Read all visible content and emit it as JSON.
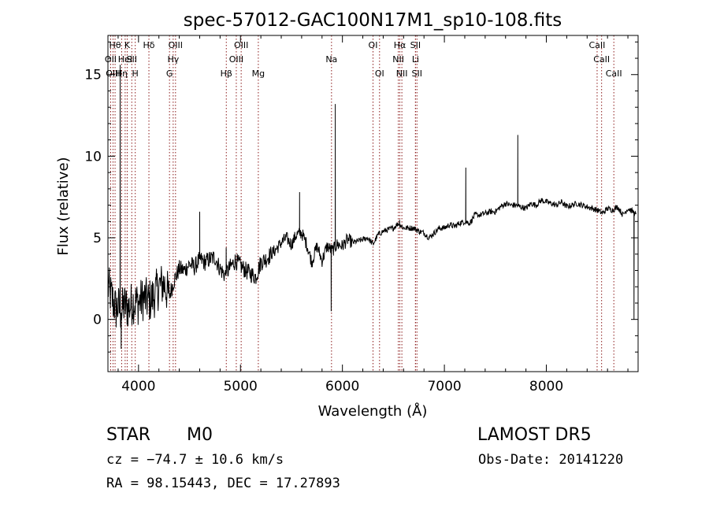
{
  "chart_data": {
    "type": "line",
    "title": "spec-57012-GAC100N17M1_sp10-108.fits",
    "xlabel": "Wavelength (Å)",
    "ylabel": "Flux (relative)",
    "xlim": [
      3700,
      8900
    ],
    "ylim": [
      -3.2,
      17.4
    ],
    "xticks": [
      4000,
      5000,
      6000,
      7000,
      8000
    ],
    "yticks": [
      0,
      5,
      10,
      15
    ],
    "grid": false,
    "series_color": "#000000",
    "line_color": "#8b1a1a",
    "anchors": [
      [
        3700,
        2.0
      ],
      [
        3740,
        1.3
      ],
      [
        3780,
        0.6
      ],
      [
        3800,
        0.8
      ],
      [
        3830,
        0.4
      ],
      [
        3860,
        0.9
      ],
      [
        3900,
        0.7
      ],
      [
        3950,
        1.1
      ],
      [
        4000,
        1.0
      ],
      [
        4050,
        1.3
      ],
      [
        4100,
        1.1
      ],
      [
        4150,
        1.4
      ],
      [
        4200,
        2.0
      ],
      [
        4250,
        2.2
      ],
      [
        4300,
        1.4
      ],
      [
        4350,
        2.4
      ],
      [
        4400,
        3.1
      ],
      [
        4450,
        3.0
      ],
      [
        4500,
        3.4
      ],
      [
        4550,
        3.2
      ],
      [
        4600,
        3.7
      ],
      [
        4650,
        3.5
      ],
      [
        4700,
        3.7
      ],
      [
        4750,
        3.8
      ],
      [
        4800,
        3.1
      ],
      [
        4850,
        2.7
      ],
      [
        4900,
        3.2
      ],
      [
        4950,
        3.6
      ],
      [
        5000,
        3.3
      ],
      [
        5050,
        3.0
      ],
      [
        5100,
        2.8
      ],
      [
        5150,
        2.6
      ],
      [
        5200,
        3.5
      ],
      [
        5250,
        3.7
      ],
      [
        5300,
        4.0
      ],
      [
        5350,
        4.3
      ],
      [
        5400,
        4.7
      ],
      [
        5450,
        5.0
      ],
      [
        5500,
        4.6
      ],
      [
        5550,
        5.2
      ],
      [
        5600,
        5.3
      ],
      [
        5650,
        4.6
      ],
      [
        5700,
        3.5
      ],
      [
        5750,
        4.5
      ],
      [
        5800,
        3.6
      ],
      [
        5850,
        4.5
      ],
      [
        5900,
        4.2
      ],
      [
        5950,
        4.6
      ],
      [
        6000,
        4.5
      ],
      [
        6050,
        4.9
      ],
      [
        6100,
        4.7
      ],
      [
        6150,
        4.8
      ],
      [
        6200,
        4.9
      ],
      [
        6250,
        5.0
      ],
      [
        6300,
        4.6
      ],
      [
        6350,
        5.2
      ],
      [
        6400,
        5.4
      ],
      [
        6450,
        5.5
      ],
      [
        6500,
        5.6
      ],
      [
        6550,
        5.9
      ],
      [
        6600,
        5.6
      ],
      [
        6650,
        5.6
      ],
      [
        6700,
        5.6
      ],
      [
        6750,
        5.4
      ],
      [
        6800,
        5.3
      ],
      [
        6850,
        5.0
      ],
      [
        6900,
        5.3
      ],
      [
        6950,
        5.6
      ],
      [
        7000,
        5.6
      ],
      [
        7050,
        5.8
      ],
      [
        7100,
        5.7
      ],
      [
        7150,
        5.9
      ],
      [
        7200,
        6.0
      ],
      [
        7250,
        5.9
      ],
      [
        7300,
        6.4
      ],
      [
        7350,
        6.4
      ],
      [
        7400,
        6.5
      ],
      [
        7450,
        6.6
      ],
      [
        7500,
        6.6
      ],
      [
        7550,
        6.9
      ],
      [
        7600,
        7.1
      ],
      [
        7650,
        7.0
      ],
      [
        7700,
        7.0
      ],
      [
        7750,
        6.9
      ],
      [
        7800,
        6.8
      ],
      [
        7850,
        7.1
      ],
      [
        7900,
        7.0
      ],
      [
        7950,
        7.3
      ],
      [
        8000,
        7.2
      ],
      [
        8050,
        7.1
      ],
      [
        8100,
        7.0
      ],
      [
        8150,
        7.2
      ],
      [
        8200,
        6.9
      ],
      [
        8250,
        7.0
      ],
      [
        8300,
        7.1
      ],
      [
        8350,
        7.0
      ],
      [
        8400,
        6.9
      ],
      [
        8450,
        6.8
      ],
      [
        8500,
        6.7
      ],
      [
        8550,
        6.5
      ],
      [
        8600,
        6.8
      ],
      [
        8650,
        6.7
      ],
      [
        8700,
        6.9
      ],
      [
        8750,
        6.4
      ],
      [
        8800,
        6.8
      ],
      [
        8850,
        6.6
      ],
      [
        8880,
        6.4
      ]
    ],
    "spikes": [
      [
        3820,
        15.6
      ],
      [
        3830,
        -1.8
      ],
      [
        4600,
        6.6
      ],
      [
        4860,
        4.4
      ],
      [
        5580,
        7.8
      ],
      [
        5890,
        0.5
      ],
      [
        5930,
        13.2
      ],
      [
        6560,
        6.1
      ],
      [
        7210,
        9.3
      ],
      [
        7720,
        11.3
      ],
      [
        8860,
        0.0
      ]
    ],
    "lines": [
      {
        "wl": 3727,
        "label": "OII",
        "row": 2
      },
      {
        "wl": 3750,
        "label": "OIII",
        "row": 3
      },
      {
        "wl": 3770,
        "label": "Hθ",
        "row": 1
      },
      {
        "wl": 3835,
        "label": "Hη",
        "row": 3
      },
      {
        "wl": 3869,
        "label": "HeI",
        "row": 2
      },
      {
        "wl": 3889,
        "label": "K",
        "row": 1
      },
      {
        "wl": 3934,
        "label": "SII",
        "row": 2
      },
      {
        "wl": 3968,
        "label": "H",
        "row": 3
      },
      {
        "wl": 4102,
        "label": "Hδ",
        "row": 1
      },
      {
        "wl": 4304,
        "label": "G",
        "row": 3
      },
      {
        "wl": 4340,
        "label": "Hγ",
        "row": 2
      },
      {
        "wl": 4363,
        "label": "OIII",
        "row": 1
      },
      {
        "wl": 4861,
        "label": "Hβ",
        "row": 3
      },
      {
        "wl": 4959,
        "label": "OIII",
        "row": 2
      },
      {
        "wl": 5007,
        "label": "OIII",
        "row": 1
      },
      {
        "wl": 5175,
        "label": "Mg",
        "row": 3
      },
      {
        "wl": 5893,
        "label": "Na",
        "row": 2
      },
      {
        "wl": 6300,
        "label": "OI",
        "row": 1
      },
      {
        "wl": 6364,
        "label": "OI",
        "row": 3
      },
      {
        "wl": 6548,
        "label": "NII",
        "row": 2
      },
      {
        "wl": 6563,
        "label": "Hα",
        "row": 1
      },
      {
        "wl": 6583,
        "label": "NII",
        "row": 3
      },
      {
        "wl": 6716,
        "label": "SII",
        "row": 1
      },
      {
        "wl": 6717,
        "label": "Li",
        "row": 2
      },
      {
        "wl": 6731,
        "label": "SII",
        "row": 3
      },
      {
        "wl": 8498,
        "label": "CaII",
        "row": 1
      },
      {
        "wl": 8542,
        "label": "CaII",
        "row": 2
      },
      {
        "wl": 8662,
        "label": "CaII",
        "row": 3
      }
    ]
  },
  "info": {
    "class": "STAR",
    "subclass": "M0",
    "survey": "LAMOST DR5",
    "cz": "cz = −74.7 ± 10.6 km/s",
    "obs_date": "Obs-Date: 20141220",
    "coords": "RA =  98.15443, DEC =  17.27893"
  }
}
